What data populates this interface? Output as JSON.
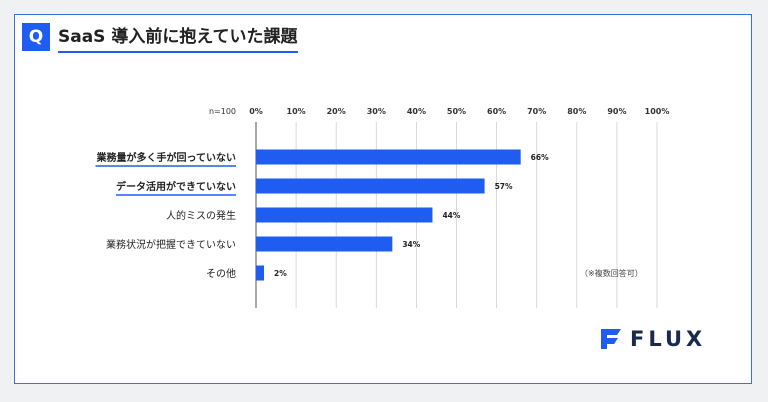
{
  "question": {
    "badge": "Q",
    "title": "SaaS 導入前に抱えていた課題"
  },
  "note": "（※複数回答可）",
  "logo": {
    "text": "FLUX",
    "color": "#1f5cf0"
  },
  "colors": {
    "bar": "#1f5cf0",
    "accent": "#1f5cf0",
    "border": "#3d6fe0"
  },
  "chart_data": {
    "type": "bar",
    "orientation": "horizontal",
    "n_label": "n=100",
    "xlim": [
      0,
      100
    ],
    "x_ticks": [
      "0%",
      "10%",
      "20%",
      "30%",
      "40%",
      "50%",
      "60%",
      "70%",
      "80%",
      "90%",
      "100%"
    ],
    "categories": [
      "業務量が多く手が回っていない",
      "データ活用ができていない",
      "人的ミスの発生",
      "業務状況が把握できていない",
      "その他"
    ],
    "values": [
      66,
      57,
      44,
      34,
      2
    ],
    "value_labels": [
      "66%",
      "57%",
      "44%",
      "34%",
      "2%"
    ],
    "highlighted": [
      true,
      true,
      false,
      false,
      false
    ],
    "grid": true
  }
}
